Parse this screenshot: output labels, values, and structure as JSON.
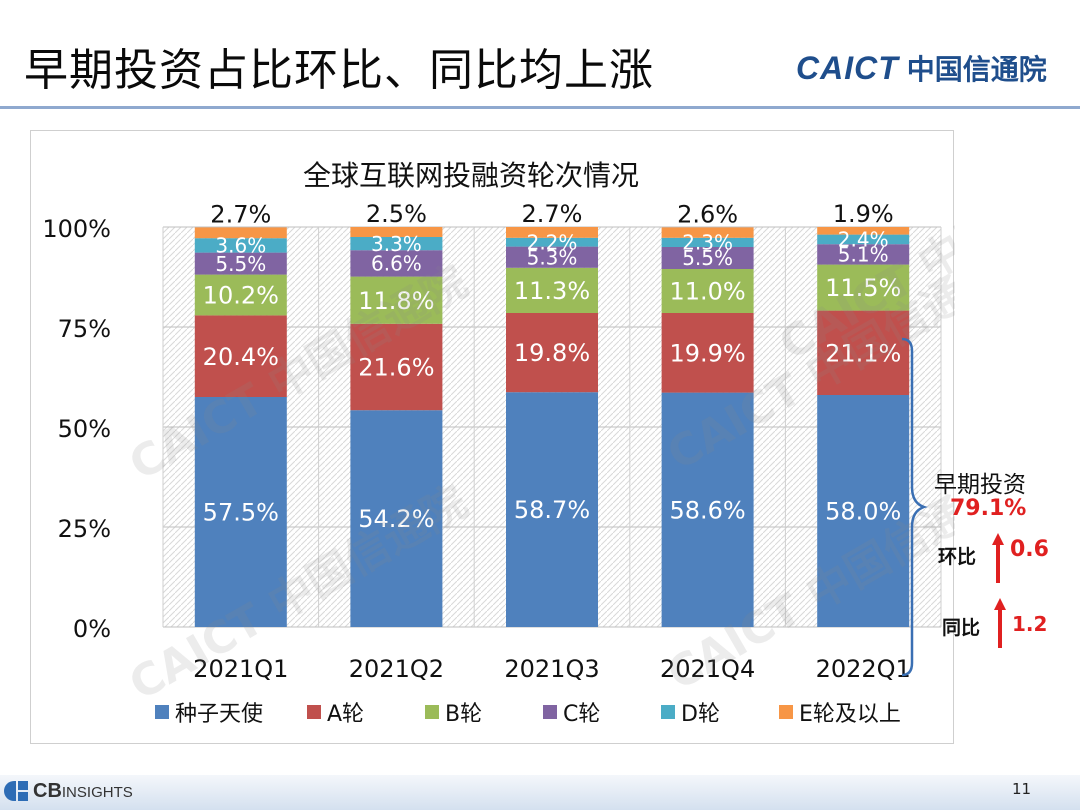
{
  "header": {
    "title": "早期投资占比环比、同比均上涨",
    "logo_en": "CAICT",
    "logo_cn": "中国信通院"
  },
  "chart_data": {
    "type": "bar",
    "stacked": true,
    "title": "全球互联网投融资轮次情况",
    "categories": [
      "2021Q1",
      "2021Q2",
      "2021Q3",
      "2021Q4",
      "2022Q1"
    ],
    "y_ticks": [
      "0%",
      "25%",
      "50%",
      "75%",
      "100%"
    ],
    "ylim": [
      0,
      100
    ],
    "legend_position": "bottom",
    "series": [
      {
        "name": "种子天使",
        "color": "#4f81bd",
        "values": [
          57.5,
          54.2,
          58.7,
          58.6,
          58.0
        ],
        "labels": [
          "57.5%",
          "54.2%",
          "58.7%",
          "58.6%",
          "58.0%"
        ]
      },
      {
        "name": "A轮",
        "color": "#c0504d",
        "values": [
          20.4,
          21.6,
          19.8,
          19.9,
          21.1
        ],
        "labels": [
          "20.4%",
          "21.6%",
          "19.8%",
          "19.9%",
          "21.1%"
        ]
      },
      {
        "name": "B轮",
        "color": "#9bbb59",
        "values": [
          10.2,
          11.8,
          11.3,
          11.0,
          11.5
        ],
        "labels": [
          "10.2%",
          "11.8%",
          "11.3%",
          "11.0%",
          "11.5%"
        ]
      },
      {
        "name": "C轮",
        "color": "#8064a2",
        "values": [
          5.5,
          6.6,
          5.3,
          5.5,
          5.1
        ],
        "labels": [
          "5.5%",
          "6.6%",
          "5.3%",
          "5.5%",
          "5.1%"
        ]
      },
      {
        "name": "D轮",
        "color": "#4bacc6",
        "values": [
          3.6,
          3.3,
          2.2,
          2.3,
          2.4
        ],
        "labels": [
          "3.6%",
          "3.3%",
          "2.2%",
          "2.3%",
          "2.4%"
        ]
      },
      {
        "name": "E轮及以上",
        "color": "#f79646",
        "values": [
          2.7,
          2.5,
          2.7,
          2.6,
          1.9
        ],
        "labels": [
          "2.7%",
          "2.5%",
          "2.7%",
          "2.6%",
          "1.9%"
        ]
      }
    ],
    "watermark": "CAICT 中国信通院"
  },
  "annotation": {
    "label": "早期投资",
    "value": "79.1%",
    "qoq_label": "环比",
    "qoq_value": "0.6",
    "yoy_label": "同比",
    "yoy_value": "1.2"
  },
  "footer": {
    "source_logo_bold": "CB",
    "source_logo_rest": "INSIGHTS",
    "page_number": "11"
  }
}
